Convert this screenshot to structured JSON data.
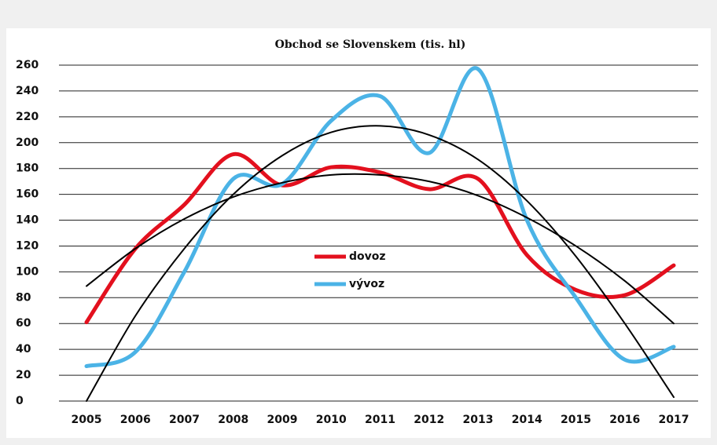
{
  "chart_data": {
    "type": "line",
    "title": "Obchod se Slovenskem (tis. hl)",
    "categories": [
      "2005",
      "2006",
      "2007",
      "2008",
      "2009",
      "2010",
      "2011",
      "2012",
      "2013",
      "2014",
      "2015",
      "2016",
      "2017"
    ],
    "series": [
      {
        "name": "dovoz",
        "color": "#e3101e",
        "values": [
          61,
          118,
          152,
          191,
          167,
          181,
          177,
          164,
          172,
          113,
          86,
          82,
          105
        ]
      },
      {
        "name": "vývoz",
        "color": "#4bb3e6",
        "values": [
          27,
          38,
          100,
          172,
          168,
          217,
          236,
          192,
          257,
          140,
          80,
          32,
          42
        ]
      }
    ],
    "trendlines": [
      {
        "color": "#000000",
        "values": [
          89,
          118,
          141,
          158,
          169,
          175,
          175,
          170,
          159,
          142,
          120,
          93,
          60
        ]
      },
      {
        "color": "#000000",
        "values": [
          0,
          66,
          118,
          160,
          190,
          208,
          213,
          206,
          187,
          155,
          112,
          60,
          3
        ]
      }
    ],
    "ylim": [
      0,
      260
    ],
    "yticks": [
      0,
      20,
      40,
      60,
      80,
      100,
      120,
      140,
      160,
      180,
      200,
      220,
      240,
      260
    ],
    "grid": true,
    "legend": "center"
  }
}
